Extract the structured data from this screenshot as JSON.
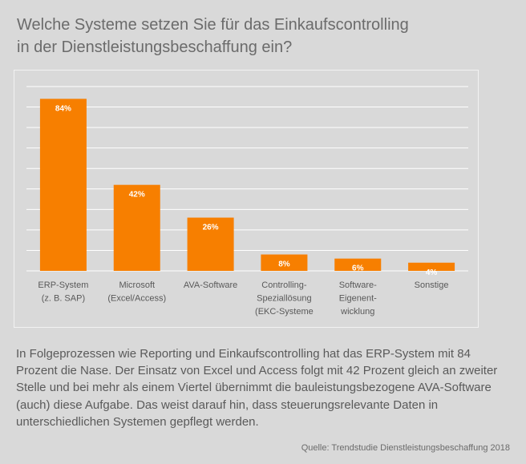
{
  "title": {
    "line1": "Welche Systeme setzen Sie für das Einkaufscontrolling",
    "line2": "in der Dienstleistungsbeschaffung ein?"
  },
  "chart_data": {
    "type": "bar",
    "categories": [
      [
        "ERP-System",
        "(z. B. SAP)"
      ],
      [
        "Microsoft",
        "(Excel/Access)"
      ],
      [
        "AVA-Software"
      ],
      [
        "Controlling-",
        "Speziallösung",
        "(EKC-Systeme"
      ],
      [
        "Software-",
        "Eigenent-",
        "wicklung"
      ],
      [
        "Sonstige"
      ]
    ],
    "values": [
      84,
      42,
      26,
      8,
      6,
      4
    ],
    "data_labels": [
      "84%",
      "42%",
      "26%",
      "8%",
      "6%",
      "4%"
    ],
    "ylim": [
      0,
      90
    ],
    "grid": true,
    "legend": "none",
    "colors": {
      "bar": "#f77f00",
      "grid": "#ffffff",
      "label": "#ffffff",
      "axis_text": "#595959"
    }
  },
  "body_text": "In Folgeprozessen wie Reporting und Einkaufscontrolling hat das ERP-System mit 84 Prozent die Nase. Der Einsatz von Excel und Access folgt mit 42 Prozent gleich an zweiter Stelle und bei mehr als einem Viertel übernimmt die bauleistungsbezogene AVA-Software (auch) diese Aufgabe. Das weist darauf hin, dass steuerungsrelevante Daten in unterschiedlichen Systemen gepflegt werden.",
  "source": "Quelle: Trendstudie Dienstleistungsbeschaffung 2018"
}
